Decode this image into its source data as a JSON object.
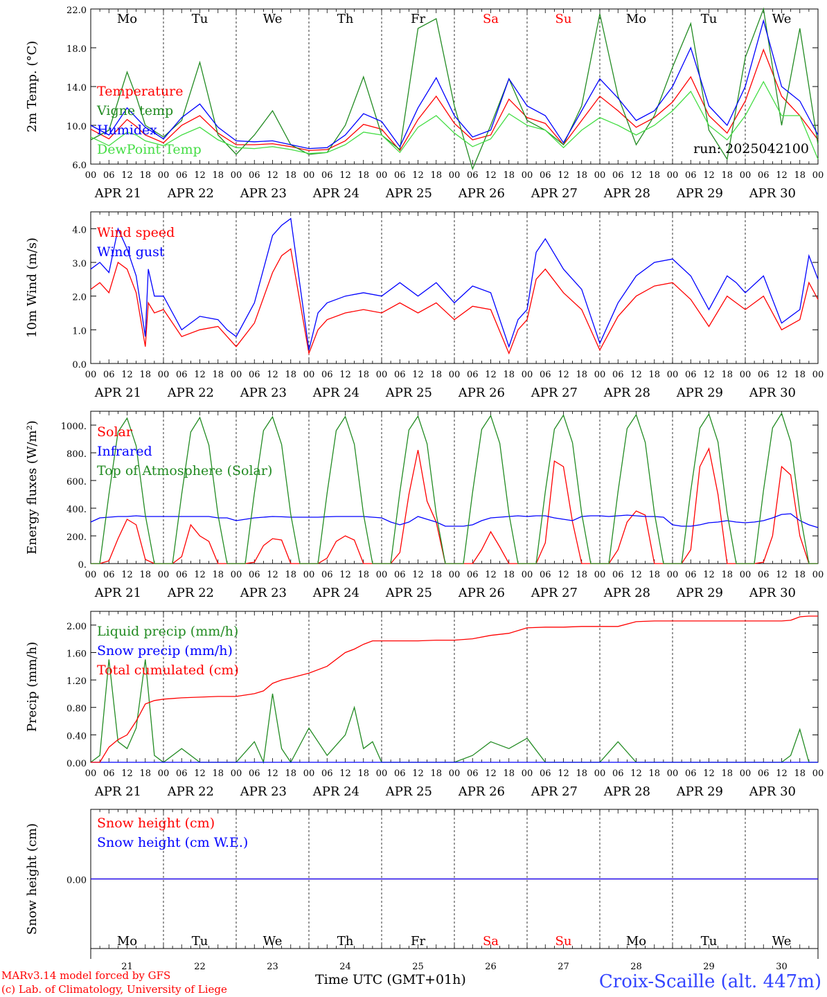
{
  "chart_data": [
    {
      "type": "line",
      "ylabel": "2m Temp. (°C)",
      "ylim": [
        6,
        22
      ],
      "yticks": [
        "6.0",
        "10.0",
        "14.0",
        "18.0",
        "22.0"
      ],
      "annotation": "run: 2025042100",
      "x_hours": [
        0,
        6,
        12,
        15,
        18,
        24,
        30,
        36,
        42,
        48,
        54,
        60,
        66,
        72,
        78,
        84,
        90,
        96,
        102,
        108,
        114,
        120,
        126,
        132,
        138,
        144,
        150,
        156,
        162,
        168,
        174,
        180,
        186,
        192,
        198,
        204,
        210,
        216,
        222,
        228,
        234,
        240
      ],
      "series": [
        {
          "name": "Temperature",
          "color": "#ff0000",
          "values": [
            9.6,
            8.6,
            10.6,
            9.9,
            9.0,
            8.2,
            10.0,
            11.0,
            9.2,
            8.0,
            8.0,
            8.1,
            7.8,
            7.4,
            7.5,
            8.4,
            10.1,
            9.6,
            7.4,
            10.6,
            13.0,
            10.2,
            8.5,
            9.0,
            12.7,
            10.8,
            10.2,
            8.0,
            10.5,
            13.0,
            11.5,
            9.8,
            10.8,
            12.4,
            15.0,
            11.0,
            9.2,
            12.5,
            17.8,
            13.0,
            11.0,
            8.5
          ]
        },
        {
          "name": "Vigne temp",
          "color": "#228b22",
          "values": [
            8.5,
            9.5,
            15.5,
            13.0,
            10.0,
            8.8,
            10.5,
            16.5,
            9.0,
            7.0,
            9.0,
            11.5,
            8.0,
            7.0,
            7.2,
            10.0,
            15.0,
            9.0,
            7.5,
            20.0,
            21.0,
            12.0,
            5.5,
            10.0,
            14.8,
            10.5,
            9.5,
            8.0,
            12.0,
            21.5,
            13.0,
            8.0,
            11.0,
            16.0,
            20.5,
            9.5,
            6.5,
            17.0,
            22.0,
            10.0,
            20.0,
            8.0
          ]
        },
        {
          "name": "Humidex",
          "color": "#0000ff",
          "values": [
            10.0,
            9.0,
            11.8,
            10.8,
            9.8,
            8.6,
            10.8,
            12.2,
            9.8,
            8.4,
            8.3,
            8.4,
            8.0,
            7.6,
            7.7,
            9.0,
            11.2,
            10.4,
            7.8,
            11.8,
            14.9,
            11.0,
            8.8,
            9.5,
            14.8,
            12.0,
            11.0,
            8.2,
            11.5,
            14.8,
            12.8,
            10.5,
            11.5,
            14.0,
            18.0,
            12.0,
            10.0,
            14.0,
            20.8,
            14.0,
            12.5,
            9.0
          ]
        },
        {
          "name": "DewPoint Temp",
          "color": "#44dd44",
          "values": [
            8.8,
            7.9,
            9.3,
            9.0,
            8.4,
            7.9,
            9.0,
            9.8,
            8.5,
            7.7,
            7.6,
            7.8,
            7.5,
            7.1,
            7.2,
            8.0,
            9.3,
            9.0,
            7.2,
            9.8,
            11.0,
            9.2,
            7.8,
            8.6,
            11.2,
            10.0,
            9.5,
            7.7,
            9.5,
            10.8,
            10.0,
            9.0,
            10.0,
            11.5,
            13.5,
            10.0,
            8.5,
            11.0,
            14.5,
            11.0,
            11.0,
            6.5
          ]
        }
      ]
    },
    {
      "type": "line",
      "ylabel": "10m Wind (m/s)",
      "ylim": [
        0,
        4.5
      ],
      "yticks": [
        "0.0",
        "1.0",
        "2.0",
        "3.0",
        "4.0"
      ],
      "x_hours": [
        0,
        3,
        6,
        9,
        12,
        15,
        18,
        19,
        21,
        24,
        30,
        36,
        42,
        45,
        48,
        54,
        60,
        63,
        66,
        72,
        75,
        78,
        84,
        90,
        96,
        102,
        108,
        114,
        120,
        126,
        132,
        138,
        141,
        144,
        147,
        150,
        156,
        162,
        168,
        174,
        180,
        186,
        192,
        198,
        204,
        210,
        213,
        216,
        222,
        228,
        234,
        237,
        240
      ],
      "series": [
        {
          "name": "Wind speed",
          "color": "#ff0000",
          "values": [
            2.2,
            2.4,
            2.1,
            3.0,
            2.8,
            2.1,
            0.5,
            1.8,
            1.5,
            1.6,
            0.8,
            1.0,
            1.1,
            0.8,
            0.5,
            1.2,
            2.7,
            3.2,
            3.4,
            0.3,
            1.0,
            1.3,
            1.5,
            1.6,
            1.5,
            1.8,
            1.5,
            1.8,
            1.3,
            1.7,
            1.6,
            0.3,
            1.0,
            1.3,
            2.5,
            2.8,
            2.1,
            1.6,
            0.4,
            1.4,
            2.0,
            2.3,
            2.4,
            1.9,
            1.1,
            2.0,
            1.8,
            1.6,
            2.0,
            1.0,
            1.3,
            2.4,
            1.9
          ]
        },
        {
          "name": "Wind gust",
          "color": "#0000ff",
          "values": [
            2.8,
            3.0,
            2.7,
            4.0,
            3.4,
            2.6,
            0.8,
            2.8,
            2.0,
            2.0,
            1.0,
            1.4,
            1.3,
            1.0,
            0.8,
            1.8,
            3.8,
            4.1,
            4.3,
            0.4,
            1.5,
            1.8,
            2.0,
            2.1,
            2.0,
            2.4,
            2.0,
            2.4,
            1.8,
            2.3,
            2.1,
            0.5,
            1.3,
            1.6,
            3.3,
            3.7,
            2.8,
            2.2,
            0.6,
            1.8,
            2.6,
            3.0,
            3.1,
            2.6,
            1.6,
            2.6,
            2.4,
            2.1,
            2.6,
            1.2,
            1.6,
            3.2,
            2.5
          ]
        }
      ]
    },
    {
      "type": "line",
      "ylabel": "Energy fluxes (W/m²)",
      "ylim": [
        0,
        1100
      ],
      "yticks": [
        "0.",
        "200.",
        "400.",
        "600.",
        "800.",
        "1000."
      ],
      "x_hours": [
        0,
        3,
        6,
        9,
        12,
        15,
        18,
        21,
        24,
        27,
        30,
        33,
        36,
        39,
        42,
        45,
        48,
        51,
        54,
        57,
        60,
        63,
        66,
        69,
        72,
        75,
        78,
        81,
        84,
        87,
        90,
        93,
        96,
        99,
        102,
        105,
        108,
        111,
        114,
        117,
        120,
        123,
        126,
        129,
        132,
        135,
        138,
        141,
        144,
        147,
        150,
        153,
        156,
        159,
        162,
        165,
        168,
        171,
        174,
        177,
        180,
        183,
        186,
        189,
        192,
        195,
        198,
        201,
        204,
        207,
        210,
        213,
        216,
        219,
        222,
        225,
        228,
        231,
        234,
        237,
        240
      ],
      "series": [
        {
          "name": "Solar",
          "color": "#ff0000",
          "values": [
            0,
            0,
            20,
            180,
            320,
            280,
            30,
            0,
            0,
            0,
            50,
            280,
            200,
            160,
            0,
            0,
            0,
            0,
            10,
            130,
            180,
            170,
            0,
            0,
            0,
            0,
            40,
            160,
            200,
            170,
            0,
            0,
            0,
            0,
            80,
            500,
            820,
            450,
            300,
            0,
            0,
            0,
            0,
            100,
            230,
            120,
            0,
            0,
            0,
            0,
            150,
            740,
            700,
            300,
            0,
            0,
            0,
            0,
            100,
            300,
            380,
            350,
            0,
            0,
            0,
            0,
            100,
            700,
            830,
            500,
            0,
            0,
            0,
            0,
            10,
            200,
            700,
            640,
            200,
            0,
            0
          ]
        },
        {
          "name": "Infrared",
          "color": "#0000ff",
          "values": [
            300,
            330,
            335,
            340,
            340,
            345,
            340,
            340,
            340,
            340,
            340,
            340,
            340,
            340,
            330,
            330,
            310,
            320,
            330,
            335,
            340,
            338,
            335,
            335,
            335,
            335,
            338,
            340,
            340,
            340,
            340,
            335,
            330,
            300,
            280,
            300,
            340,
            320,
            300,
            270,
            270,
            270,
            280,
            310,
            330,
            335,
            340,
            345,
            340,
            345,
            345,
            330,
            320,
            310,
            340,
            345,
            345,
            340,
            345,
            350,
            345,
            340,
            340,
            335,
            280,
            270,
            270,
            280,
            295,
            300,
            310,
            300,
            295,
            300,
            310,
            330,
            355,
            360,
            310,
            280,
            260
          ]
        },
        {
          "name": "Top of Atmosphere (Solar)",
          "color": "#228b22",
          "values": [
            0,
            0,
            500,
            950,
            1050,
            850,
            350,
            0,
            0,
            0,
            500,
            950,
            1055,
            855,
            350,
            0,
            0,
            0,
            510,
            960,
            1060,
            860,
            355,
            0,
            0,
            0,
            510,
            960,
            1062,
            862,
            356,
            0,
            0,
            0,
            515,
            965,
            1065,
            865,
            358,
            0,
            0,
            0,
            515,
            968,
            1068,
            868,
            360,
            0,
            0,
            0,
            520,
            970,
            1072,
            872,
            362,
            0,
            0,
            0,
            520,
            975,
            1075,
            875,
            365,
            0,
            0,
            0,
            525,
            978,
            1080,
            878,
            366,
            0,
            0,
            0,
            528,
            980,
            1085,
            880,
            368,
            0,
            0
          ]
        }
      ]
    },
    {
      "type": "line",
      "ylabel": "Precip (mm/h)",
      "ylim": [
        0,
        2.2
      ],
      "yticks": [
        "0.00",
        "0.40",
        "0.80",
        "1.20",
        "1.60",
        "2.00"
      ],
      "x_hours": [
        0,
        3,
        6,
        9,
        12,
        15,
        18,
        21,
        24,
        30,
        36,
        42,
        48,
        54,
        57,
        60,
        63,
        66,
        72,
        78,
        84,
        87,
        90,
        93,
        96,
        102,
        108,
        114,
        120,
        126,
        132,
        138,
        144,
        150,
        156,
        162,
        168,
        174,
        180,
        186,
        192,
        198,
        204,
        210,
        216,
        222,
        228,
        231,
        234,
        237,
        240
      ],
      "series": [
        {
          "name": "Liquid precip (mm/h)",
          "color": "#228b22",
          "values": [
            0,
            0.1,
            1.5,
            0.3,
            0.2,
            0.5,
            1.5,
            0.1,
            0,
            0.2,
            0,
            0,
            0,
            0.3,
            0,
            1.0,
            0.2,
            0,
            0.5,
            0.1,
            0.4,
            0.8,
            0.2,
            0.3,
            0,
            0,
            0,
            0,
            0,
            0.1,
            0.3,
            0.2,
            0.35,
            0,
            0,
            0,
            0,
            0.3,
            0,
            0,
            0,
            0,
            0,
            0,
            0,
            0,
            0,
            0.1,
            0.48,
            0,
            0
          ]
        },
        {
          "name": "Snow precip (mm/h)",
          "color": "#0000ff",
          "values": [
            0,
            0,
            0,
            0,
            0,
            0,
            0,
            0,
            0,
            0,
            0,
            0,
            0,
            0,
            0,
            0,
            0,
            0,
            0,
            0,
            0,
            0,
            0,
            0,
            0,
            0,
            0,
            0,
            0,
            0,
            0,
            0,
            0,
            0,
            0,
            0,
            0,
            0,
            0,
            0,
            0,
            0,
            0,
            0,
            0,
            0,
            0,
            0,
            0,
            0,
            0
          ]
        },
        {
          "name": "Total cumulated (cm)",
          "color": "#ff0000",
          "values": [
            0,
            0,
            0.22,
            0.33,
            0.4,
            0.6,
            0.85,
            0.9,
            0.92,
            0.94,
            0.95,
            0.96,
            0.96,
            1.0,
            1.04,
            1.15,
            1.2,
            1.23,
            1.3,
            1.4,
            1.6,
            1.65,
            1.72,
            1.77,
            1.77,
            1.77,
            1.77,
            1.78,
            1.78,
            1.8,
            1.85,
            1.88,
            1.96,
            1.97,
            1.97,
            1.98,
            1.98,
            1.98,
            2.05,
            2.06,
            2.06,
            2.06,
            2.06,
            2.06,
            2.06,
            2.06,
            2.06,
            2.07,
            2.12,
            2.13,
            2.13
          ]
        }
      ]
    },
    {
      "type": "line",
      "ylabel": "Snow height (cm)",
      "ylim": [
        -1,
        1
      ],
      "yticks": [
        "0.00"
      ],
      "x_hours": [
        0,
        240
      ],
      "series": [
        {
          "name": "Snow height (cm)",
          "color": "#ff0000",
          "values": [
            0,
            0
          ]
        },
        {
          "name": "Snow height (cm W.E.)",
          "color": "#0000ff",
          "values": [
            0,
            0
          ]
        }
      ]
    }
  ],
  "x_axis": {
    "hour_labels": [
      "00",
      "06",
      "12",
      "18"
    ],
    "end_label": "00",
    "dates": [
      "APR 21",
      "APR 22",
      "APR 23",
      "APR 24",
      "APR 25",
      "APR 26",
      "APR 27",
      "APR 28",
      "APR 29",
      "APR 30"
    ],
    "weekdays": [
      {
        "label": "Mo",
        "color": "#000000"
      },
      {
        "label": "Tu",
        "color": "#000000"
      },
      {
        "label": "We",
        "color": "#000000"
      },
      {
        "label": "Th",
        "color": "#000000"
      },
      {
        "label": "Fr",
        "color": "#000000"
      },
      {
        "label": "Sa",
        "color": "#ff0000"
      },
      {
        "label": "Su",
        "color": "#ff0000"
      },
      {
        "label": "Mo",
        "color": "#000000"
      },
      {
        "label": "Tu",
        "color": "#000000"
      },
      {
        "label": "We",
        "color": "#000000"
      }
    ],
    "day_numbers": [
      "21",
      "22",
      "23",
      "24",
      "25",
      "26",
      "27",
      "28",
      "29",
      "30"
    ]
  },
  "footer": {
    "xlabel": "Time UTC (GMT+01h)",
    "credit_line1": "MARv3.14 model forced by GFS",
    "credit_line2": "(c) Lab. of Climatology, University of Liege",
    "station": "Croix-Scaille (alt. 447m)"
  }
}
